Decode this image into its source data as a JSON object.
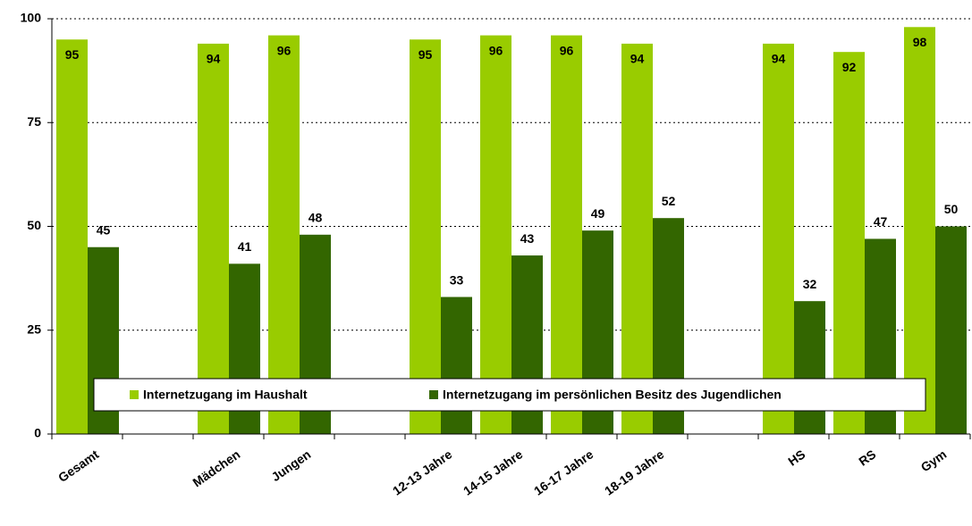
{
  "chart_data": {
    "type": "bar",
    "categories": [
      "Gesamt",
      null,
      "Mädchen",
      "Jungen",
      null,
      "12-13 Jahre",
      "14-15 Jahre",
      "16-17 Jahre",
      "18-19 Jahre",
      null,
      "HS",
      "RS",
      "Gym"
    ],
    "series": [
      {
        "name": "Internetzugang im Haushalt",
        "color": "#99cc00",
        "values": [
          95,
          null,
          94,
          96,
          null,
          95,
          96,
          96,
          94,
          null,
          94,
          92,
          98
        ]
      },
      {
        "name": "Internetzugang im persönlichen Besitz des Jugendlichen",
        "color": "#336600",
        "values": [
          45,
          null,
          41,
          48,
          null,
          33,
          43,
          49,
          52,
          null,
          32,
          47,
          50
        ]
      }
    ],
    "ylim": [
      0,
      100
    ],
    "yticks": [
      0,
      25,
      50,
      75,
      100
    ],
    "grid": true
  }
}
